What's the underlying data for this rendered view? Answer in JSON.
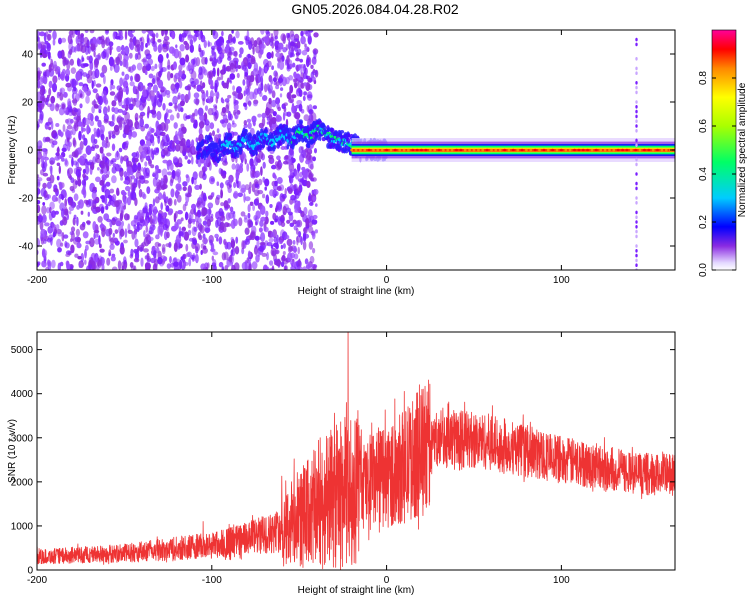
{
  "figure_title": "GN05.2026.084.04.28.R02",
  "colors": {
    "axis": "#000000",
    "snr_line": "#ee3333",
    "spectrogram_low": "#8a2be2",
    "spectrogram_high": "#ff0000"
  },
  "chart_data": [
    {
      "type": "heatmap",
      "name": "spectrogram",
      "xlabel": "Height of straight line (km)",
      "ylabel": "Frequency (Hz)",
      "xlim": [
        -200,
        165
      ],
      "ylim": [
        -50,
        50
      ],
      "x_ticks": [
        -200,
        -100,
        0,
        100
      ],
      "y_ticks": [
        -40,
        -20,
        0,
        20,
        40
      ],
      "colorbar": {
        "label": "Normalized spectral amplitude",
        "range": [
          0,
          1
        ],
        "ticks": [
          0.0,
          0.2,
          0.4,
          0.6,
          0.8
        ]
      },
      "features": {
        "noise_region_km": [
          -200,
          -55
        ],
        "doppler_track_km": [
          -105,
          165
        ],
        "track_frequency_hz": 0,
        "track_wander_hz": [
          -2,
          10
        ],
        "track_wander_peak_km": -35,
        "vertical_artifact_km": 143
      }
    },
    {
      "type": "line",
      "name": "snr",
      "xlabel": "Height of straight line (km)",
      "ylabel": "SNR (10 * v/v)",
      "xlim": [
        -200,
        165
      ],
      "ylim": [
        0,
        5400
      ],
      "x_ticks": [
        -200,
        -100,
        0,
        100
      ],
      "y_ticks": [
        0,
        1000,
        2000,
        3000,
        4000,
        5000
      ],
      "trend_x": [
        -200,
        -150,
        -100,
        -80,
        -60,
        -50,
        -40,
        -30,
        -20,
        -10,
        0,
        10,
        20,
        30,
        40,
        60,
        80,
        100,
        120,
        140,
        165
      ],
      "trend_y": [
        300,
        380,
        560,
        700,
        900,
        1150,
        1400,
        1650,
        1800,
        1950,
        2100,
        2350,
        2700,
        2950,
        3000,
        2900,
        2700,
        2500,
        2350,
        2200,
        2150
      ],
      "spikes": [
        {
          "x": -22,
          "y": 5400
        },
        {
          "x": -23,
          "y": 3800
        },
        {
          "x": -38,
          "y": 3000
        },
        {
          "x": -105,
          "y": 1100
        }
      ]
    }
  ]
}
